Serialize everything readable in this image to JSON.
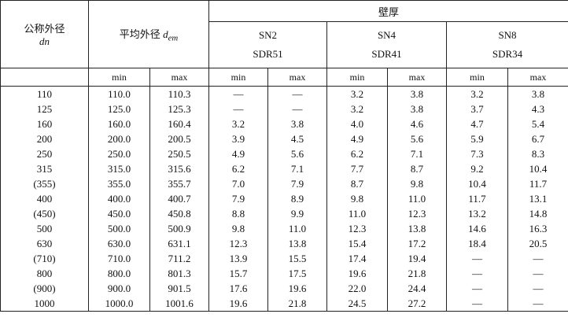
{
  "header": {
    "outer_diameter": "公称外径",
    "outer_diameter_symbol": "dn",
    "mean_diameter": "平均外径",
    "mean_symbol": "d",
    "mean_symbol_sub": "em",
    "wall": "壁厚",
    "groups": [
      {
        "sn": "SN2",
        "sdr": "SDR51"
      },
      {
        "sn": "SN4",
        "sdr": "SDR41"
      },
      {
        "sn": "SN8",
        "sdr": "SDR34"
      }
    ],
    "sub": [
      "min",
      "max",
      "min",
      "max",
      "min",
      "max",
      "min",
      "max"
    ]
  },
  "table": {
    "rows": [
      [
        "110",
        "110.0",
        "110.3",
        "—",
        "—",
        "3.2",
        "3.8",
        "3.2",
        "3.8"
      ],
      [
        "125",
        "125.0",
        "125.3",
        "—",
        "—",
        "3.2",
        "3.8",
        "3.7",
        "4.3"
      ],
      [
        "160",
        "160.0",
        "160.4",
        "3.2",
        "3.8",
        "4.0",
        "4.6",
        "4.7",
        "5.4"
      ],
      [
        "200",
        "200.0",
        "200.5",
        "3.9",
        "4.5",
        "4.9",
        "5.6",
        "5.9",
        "6.7"
      ],
      [
        "250",
        "250.0",
        "250.5",
        "4.9",
        "5.6",
        "6.2",
        "7.1",
        "7.3",
        "8.3"
      ],
      [
        "315",
        "315.0",
        "315.6",
        "6.2",
        "7.1",
        "7.7",
        "8.7",
        "9.2",
        "10.4"
      ],
      [
        "(355)",
        "355.0",
        "355.7",
        "7.0",
        "7.9",
        "8.7",
        "9.8",
        "10.4",
        "11.7"
      ],
      [
        "400",
        "400.0",
        "400.7",
        "7.9",
        "8.9",
        "9.8",
        "11.0",
        "11.7",
        "13.1"
      ],
      [
        "(450)",
        "450.0",
        "450.8",
        "8.8",
        "9.9",
        "11.0",
        "12.3",
        "13.2",
        "14.8"
      ],
      [
        "500",
        "500.0",
        "500.9",
        "9.8",
        "11.0",
        "12.3",
        "13.8",
        "14.6",
        "16.3"
      ],
      [
        "630",
        "630.0",
        "631.1",
        "12.3",
        "13.8",
        "15.4",
        "17.2",
        "18.4",
        "20.5"
      ],
      [
        "(710)",
        "710.0",
        "711.2",
        "13.9",
        "15.5",
        "17.4",
        "19.4",
        "—",
        "—"
      ],
      [
        "800",
        "800.0",
        "801.3",
        "15.7",
        "17.5",
        "19.6",
        "21.8",
        "—",
        "—"
      ],
      [
        "(900)",
        "900.0",
        "901.5",
        "17.6",
        "19.6",
        "22.0",
        "24.4",
        "—",
        "—"
      ],
      [
        "1000",
        "1000.0",
        "1001.6",
        "19.6",
        "21.8",
        "24.5",
        "27.2",
        "—",
        "—"
      ]
    ]
  }
}
